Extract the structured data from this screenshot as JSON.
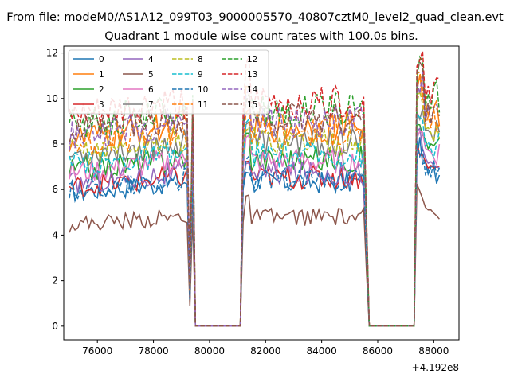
{
  "chart_data": {
    "type": "line",
    "suptitle": "From file: modeM0/AS1A12_099T03_9000005570_40807cztM0_level2_quad_clean.evt",
    "title": "Quadrant 1 module wise count rates with 100.0s bins.",
    "xlabel": "",
    "ylabel": "",
    "offset_label": "+4.192e8",
    "xlim": [
      74800,
      88900
    ],
    "ylim": [
      -0.6,
      12.3
    ],
    "xticks": [
      76000,
      78000,
      80000,
      82000,
      84000,
      86000,
      88000
    ],
    "yticks": [
      0,
      2,
      4,
      6,
      8,
      10,
      12
    ],
    "legend_loc": "upper left",
    "segments": [
      [
        75000,
        79400
      ],
      [
        81200,
        85600
      ],
      [
        87400,
        88200
      ]
    ],
    "base_x": [
      75000,
      75500,
      76000,
      76500,
      77000,
      77500,
      78000,
      78500,
      79000,
      79300,
      79400,
      81100,
      81200,
      81500,
      82000,
      82500,
      83000,
      83500,
      84000,
      84500,
      85000,
      85500,
      85600,
      87300,
      87400,
      87600,
      87800,
      88000,
      88200
    ],
    "series": [
      {
        "name": "0",
        "color": "#1f77b4",
        "dash": false,
        "level": 6.2
      },
      {
        "name": "1",
        "color": "#ff7f0e",
        "dash": false,
        "level": 8.6
      },
      {
        "name": "2",
        "color": "#2ca02c",
        "dash": false,
        "level": 7.2
      },
      {
        "name": "3",
        "color": "#d62728",
        "dash": false,
        "level": 6.4
      },
      {
        "name": "4",
        "color": "#9467bd",
        "dash": false,
        "level": 6.6
      },
      {
        "name": "5",
        "color": "#8c564b",
        "dash": false,
        "level": 4.7
      },
      {
        "name": "6",
        "color": "#e377c2",
        "dash": false,
        "level": 7.1
      },
      {
        "name": "7",
        "color": "#7f7f7f",
        "dash": false,
        "level": 7.9
      },
      {
        "name": "8",
        "color": "#bcbd22",
        "dash": true,
        "level": 8.0
      },
      {
        "name": "9",
        "color": "#17becf",
        "dash": true,
        "level": 7.4
      },
      {
        "name": "10",
        "color": "#1f77b4",
        "dash": true,
        "level": 6.3
      },
      {
        "name": "11",
        "color": "#ff7f0e",
        "dash": true,
        "level": 8.4
      },
      {
        "name": "12",
        "color": "#2ca02c",
        "dash": true,
        "level": 9.3
      },
      {
        "name": "13",
        "color": "#d62728",
        "dash": true,
        "level": 9.6
      },
      {
        "name": "14",
        "color": "#9467bd",
        "dash": true,
        "level": 8.8
      },
      {
        "name": "15",
        "color": "#8c564b",
        "dash": true,
        "level": 8.9
      }
    ]
  }
}
